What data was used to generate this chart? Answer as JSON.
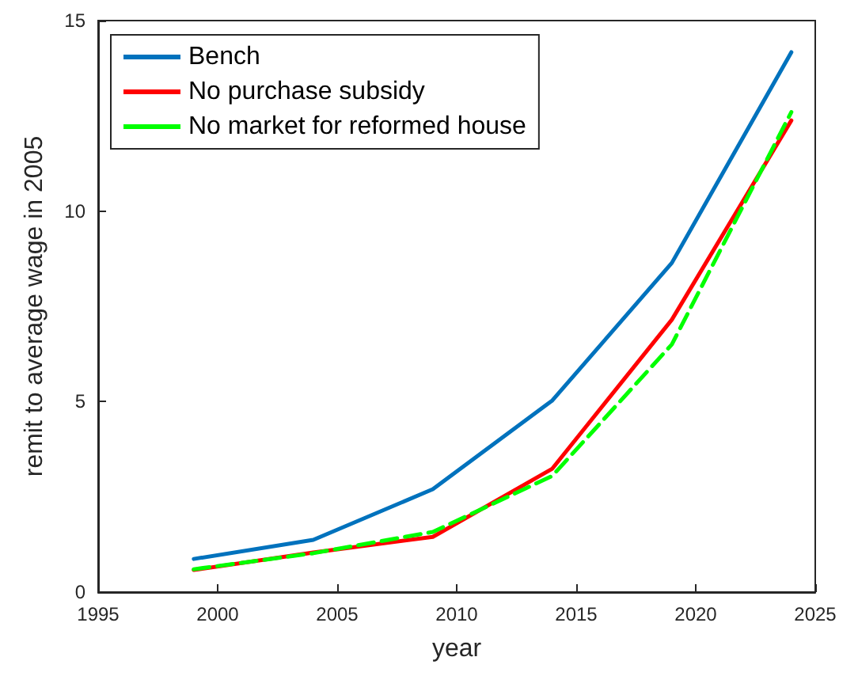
{
  "chart_data": {
    "type": "line",
    "xlabel": "year",
    "ylabel": "remit to average wage in 2005",
    "x": [
      1999,
      2004,
      2009,
      2014,
      2019,
      2024
    ],
    "series": [
      {
        "name": "Bench",
        "color": "#0072bd",
        "values": [
          0.87,
          1.37,
          2.7,
          5.03,
          8.64,
          14.17
        ],
        "line_style": "solid"
      },
      {
        "name": "No purchase subsidy",
        "color": "#ff0000",
        "values": [
          0.58,
          1.04,
          1.45,
          3.24,
          7.15,
          12.38
        ],
        "line_style": "solid"
      },
      {
        "name": "No market for reformed house",
        "color": "#00ff00",
        "values": [
          0.6,
          1.02,
          1.58,
          3.05,
          6.5,
          12.6
        ],
        "line_style": "dashed"
      }
    ],
    "xlim": [
      1995,
      2025
    ],
    "xticks": [
      1995,
      2000,
      2005,
      2010,
      2015,
      2020,
      2025
    ],
    "ylim": [
      0,
      15
    ],
    "yticks": [
      0,
      5,
      10,
      15
    ],
    "grid": false,
    "legend": "top left",
    "marker": "none"
  }
}
